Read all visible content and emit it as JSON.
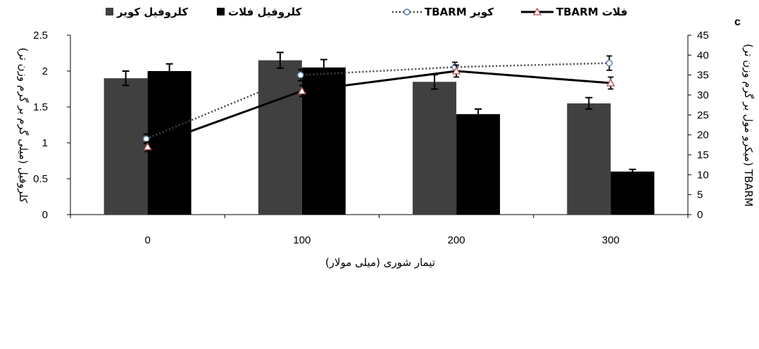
{
  "panel_label": "c",
  "chart_data": {
    "type": "bar",
    "categories": [
      "0",
      "100",
      "200",
      "300"
    ],
    "xlabel": "تیمار شوری (میلی مولار)",
    "ylabel": "کلروفیل (میلی گرم بر گرم وزن تر)",
    "y2label": "TBARM (میکرو مول بر گرم وزن تر)",
    "ylim": [
      0,
      2.5
    ],
    "y_ticks": [
      "0",
      "0.5",
      "1",
      "1.5",
      "2",
      "2.5"
    ],
    "y2lim": [
      0,
      45
    ],
    "y2_ticks": [
      "0",
      "5",
      "10",
      "15",
      "20",
      "25",
      "30",
      "35",
      "40",
      "45"
    ],
    "legend_position": "top",
    "series": [
      {
        "name": "کلروفیل کویر",
        "kind": "bar",
        "axis": "left",
        "color": "#404040",
        "values": [
          1.9,
          2.15,
          1.85,
          1.55
        ],
        "errors": [
          0.1,
          0.11,
          0.1,
          0.08
        ]
      },
      {
        "name": "کلروفیل فلات",
        "kind": "bar",
        "axis": "left",
        "color": "#000000",
        "values": [
          2.0,
          2.05,
          1.4,
          0.6
        ],
        "errors": [
          0.1,
          0.11,
          0.07,
          0.03
        ]
      },
      {
        "name": "TBARM کویر",
        "kind": "line",
        "axis": "right",
        "color": "#444444",
        "style": "dotted",
        "marker": "circle",
        "values": [
          19,
          35,
          37,
          38
        ],
        "errors": [
          1.2,
          1.4,
          1.2,
          1.8
        ]
      },
      {
        "name": "TBARM فلات",
        "kind": "line",
        "axis": "right",
        "color": "#000000",
        "style": "solid",
        "marker": "triangle",
        "values": [
          17,
          31,
          36,
          33
        ],
        "errors": [
          1.2,
          1.4,
          1.5,
          1.5
        ]
      }
    ]
  }
}
